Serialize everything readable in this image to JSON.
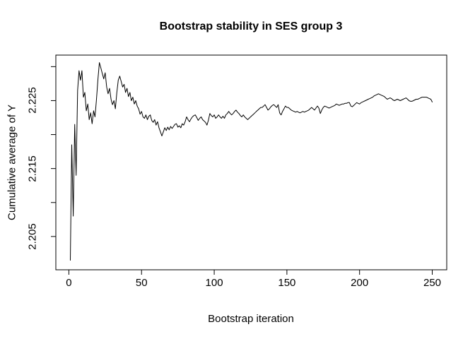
{
  "chart_data": {
    "type": "line",
    "title": "Bootstrap stability in SES group 3",
    "xlabel": "Bootstrap iteration",
    "ylabel": "Cumulative average of Y",
    "grid": false,
    "legend": "none",
    "line_color": "#000000",
    "background_color": "#ffffff",
    "box_color": "#000000",
    "xlim": [
      -8.96,
      259.96
    ],
    "ylim": [
      2.2001,
      2.2317
    ],
    "x_ticks": [
      0,
      50,
      100,
      150,
      200,
      250
    ],
    "x_tick_labels": [
      "0",
      "50",
      "100",
      "150",
      "200",
      "250"
    ],
    "y_ticks": [
      2.205,
      2.21,
      2.215,
      2.22,
      2.225,
      2.23
    ],
    "y_labeled_ticks": [
      2.205,
      2.215,
      2.225
    ],
    "y_tick_labels": [
      "2.205",
      "2.215",
      "2.225"
    ],
    "x_start": 1,
    "values": [
      2.2015,
      2.2185,
      2.208,
      2.2215,
      2.214,
      2.2265,
      2.2294,
      2.228,
      2.2294,
      2.2255,
      2.2262,
      2.2235,
      2.2245,
      2.2222,
      2.2232,
      2.2216,
      2.2235,
      2.2226,
      2.2252,
      2.2282,
      2.2306,
      2.2298,
      2.229,
      2.2282,
      2.2291,
      2.227,
      2.226,
      2.2268,
      2.2252,
      2.2244,
      2.225,
      2.2238,
      2.2262,
      2.228,
      2.2286,
      2.2278,
      2.227,
      2.2274,
      2.2262,
      2.2268,
      2.2256,
      2.2262,
      2.225,
      2.2255,
      2.2245,
      2.225,
      2.2242,
      2.2238,
      2.223,
      2.2234,
      2.2226,
      2.2224,
      2.2229,
      2.2222,
      2.2227,
      2.2229,
      2.2221,
      2.2218,
      2.2222,
      2.2214,
      2.2219,
      2.221,
      2.2204,
      2.2198,
      2.2204,
      2.221,
      2.2206,
      2.2211,
      2.2207,
      2.2212,
      2.2209,
      2.2212,
      2.2215,
      2.2216,
      2.2211,
      2.2213,
      2.221,
      2.2216,
      2.2214,
      2.2219,
      2.2226,
      2.2222,
      2.2219,
      2.2223,
      2.2226,
      2.2228,
      2.2229,
      2.2225,
      2.2221,
      2.2224,
      2.2226,
      2.2222,
      2.222,
      2.2218,
      2.2214,
      2.2221,
      2.2231,
      2.2228,
      2.2226,
      2.2229,
      2.2224,
      2.2226,
      2.2229,
      2.2226,
      2.2224,
      2.2227,
      2.2224,
      2.2229,
      2.2231,
      2.2234,
      2.2231,
      2.2229,
      2.2231,
      2.2234,
      2.2236,
      2.2233,
      2.2231,
      2.2228,
      2.2226,
      2.2229,
      2.2226,
      2.2224,
      2.2222,
      2.2224,
      2.2226,
      2.2228,
      2.223,
      2.2232,
      2.2234,
      2.2236,
      2.2238,
      2.224,
      2.224,
      2.2242,
      2.2244,
      2.224,
      2.2236,
      2.2238,
      2.2241,
      2.2243,
      2.2244,
      2.2242,
      2.224,
      2.2244,
      2.2232,
      2.2229,
      2.2234,
      2.2238,
      2.2242,
      2.224,
      2.224,
      2.2238,
      2.2236,
      2.2235,
      2.2234,
      2.2233,
      2.2234,
      2.2233,
      2.2232,
      2.2233,
      2.2234,
      2.2233,
      2.2234,
      2.2235,
      2.2236,
      2.2238,
      2.224,
      2.2238,
      2.2236,
      2.2239,
      2.2242,
      2.2239,
      2.2231,
      2.2236,
      2.224,
      2.2242,
      2.2241,
      2.224,
      2.2239,
      2.224,
      2.2241,
      2.2242,
      2.2243,
      2.2245,
      2.2244,
      2.2243,
      2.2244,
      2.2245,
      2.2245,
      2.2246,
      2.2246,
      2.2247,
      2.2247,
      2.2242,
      2.2241,
      2.2243,
      2.2245,
      2.2247,
      2.2246,
      2.2245,
      2.2247,
      2.2248,
      2.2249,
      2.225,
      2.2251,
      2.2252,
      2.2253,
      2.2254,
      2.2255,
      2.2257,
      2.2258,
      2.2259,
      2.226,
      2.2259,
      2.2258,
      2.2257,
      2.2256,
      2.2254,
      2.2252,
      2.2253,
      2.2254,
      2.2253,
      2.2251,
      2.225,
      2.2251,
      2.2252,
      2.2251,
      2.225,
      2.2251,
      2.2252,
      2.2253,
      2.2254,
      2.2252,
      2.225,
      2.2249,
      2.2249,
      2.225,
      2.2251,
      2.2252,
      2.2252,
      2.2253,
      2.2254,
      2.2255,
      2.2255,
      2.2255,
      2.2255,
      2.2254,
      2.2253,
      2.2252,
      2.2248
    ]
  }
}
